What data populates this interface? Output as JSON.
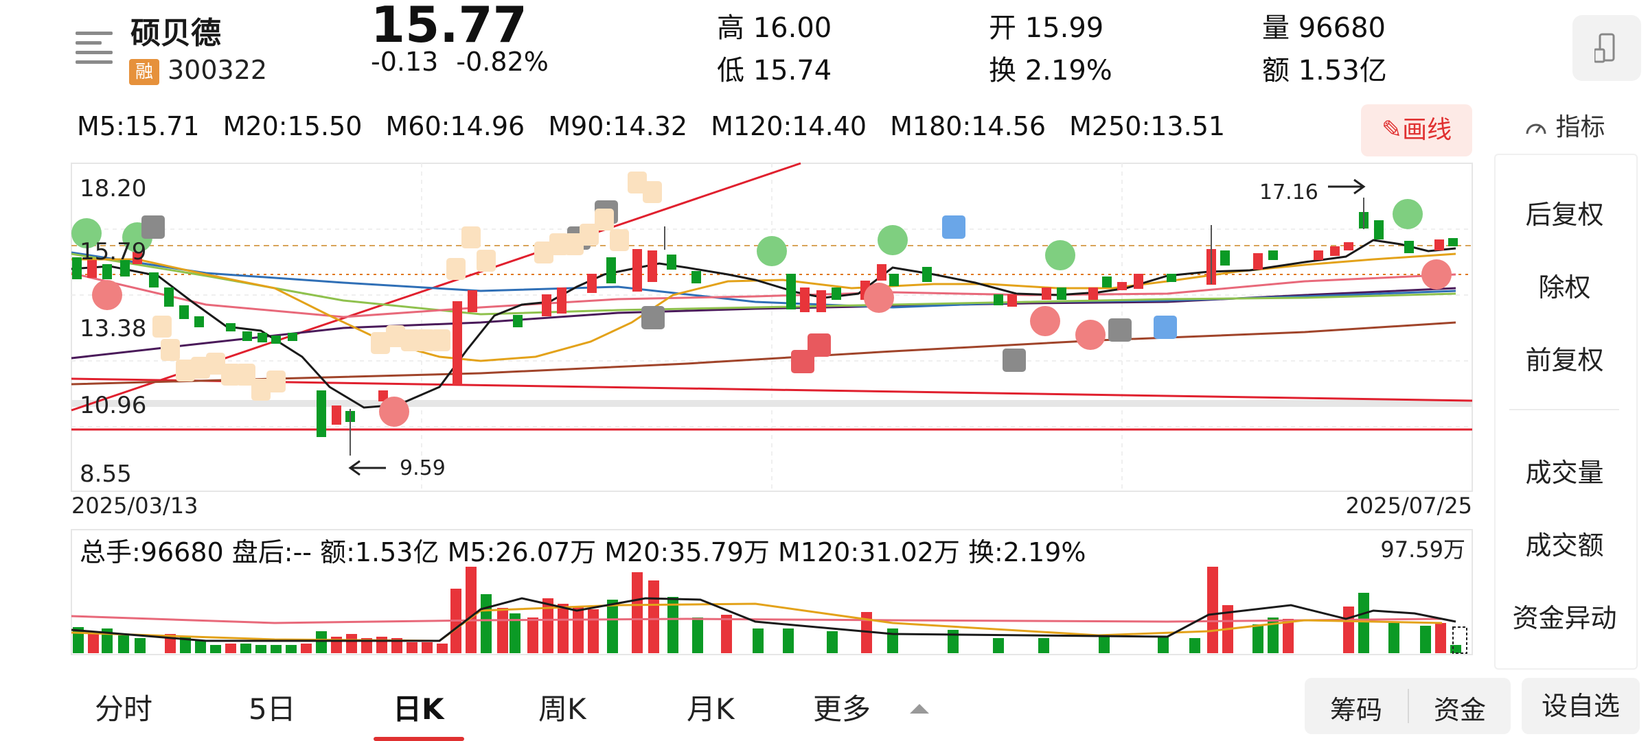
{
  "header": {
    "stock_name": "硕贝德",
    "margin_tag": "融",
    "code": "300322",
    "price": "15.77",
    "change": "-0.13",
    "change_pct": "-0.82%",
    "quotes": {
      "high_label": "高",
      "high": "16.00",
      "low_label": "低",
      "low": "15.74",
      "open_label": "开",
      "open": "15.99",
      "turnover_label": "换",
      "turnover": "2.19%",
      "volume_label": "量",
      "volume": "96680",
      "amount_label": "额",
      "amount": "1.53亿"
    }
  },
  "ma_bar": {
    "items": [
      "M5:15.71",
      "M20:15.50",
      "M60:14.96",
      "M90:14.32",
      "M120:14.40",
      "M180:14.56",
      "M250:13.51"
    ],
    "draw_button": "画线",
    "indicator_button": "指标"
  },
  "price_chart": {
    "y_labels": [
      "18.20",
      "15.79",
      "13.38",
      "10.96",
      "8.55"
    ],
    "date_start": "2025/03/13",
    "date_end": "2025/07/25",
    "max_annotation": "17.16",
    "min_annotation": "9.59",
    "colors": {
      "up": "#e8343a",
      "down": "#0b9a25",
      "ma5": "#1a1a1a",
      "ma20": "#e3a21a",
      "ma60": "#e8697a",
      "ma90": "#8fc14d",
      "ma120": "#2f6fb6",
      "ma250": "#4a1a5a",
      "trend": "#e0202e"
    }
  },
  "volume_chart": {
    "info": "总手:96680  盘后:--  额:1.53亿  M5:26.07万  M20:35.79万  M120:31.02万  换:2.19%",
    "max_label": "97.59万"
  },
  "side_menu": [
    "后复权",
    "除权",
    "前复权",
    "成交量",
    "成交额",
    "资金异动"
  ],
  "bottom_tabs": [
    "分时",
    "5日",
    "日K",
    "周K",
    "月K",
    "更多"
  ],
  "bottom_buttons": {
    "chips": "筹码",
    "funds": "资金",
    "watchlist": "设自选"
  }
}
